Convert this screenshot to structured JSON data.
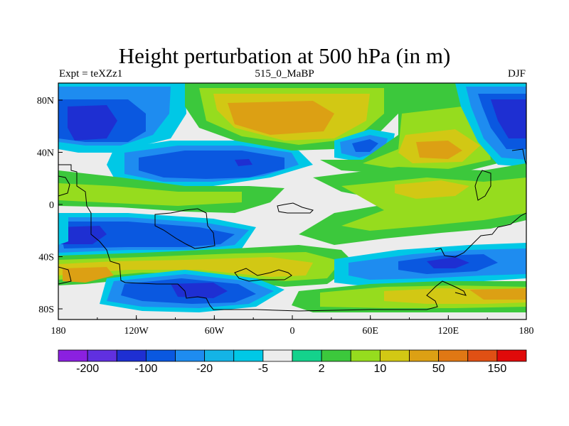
{
  "title": "Height perturbation at 500 hPa (in m)",
  "subtitle_left": "Expt = teXZz1",
  "subtitle_center": "515_0_MaBP",
  "subtitle_right": "DJF",
  "lon_ticks": [
    "180",
    "120W",
    "60W",
    "0",
    "60E",
    "120E",
    "180"
  ],
  "lat_ticks": [
    "80N",
    "40N",
    "0",
    "40S",
    "80S"
  ],
  "colorbar": {
    "colors": [
      "#8b20e0",
      "#6030e0",
      "#1e2fd2",
      "#0a58e0",
      "#1e8cf0",
      "#14b4e6",
      "#00c8e6",
      "#ececec",
      "#14d28c",
      "#3cc83c",
      "#96dc1e",
      "#d2c814",
      "#dca014",
      "#e07814",
      "#e05014",
      "#e00a0a"
    ],
    "labels": [
      "-200",
      "-100",
      "-20",
      "-5",
      "2",
      "10",
      "50",
      "150"
    ]
  },
  "field": {
    "levels": [
      "#ececec",
      "#00c8e6",
      "#1e8cf0",
      "#0a58e0",
      "#1e2fd2",
      "#6030e0",
      "#3cc83c",
      "#96dc1e",
      "#d2c814",
      "#dca014"
    ],
    "background": "#ececec"
  }
}
